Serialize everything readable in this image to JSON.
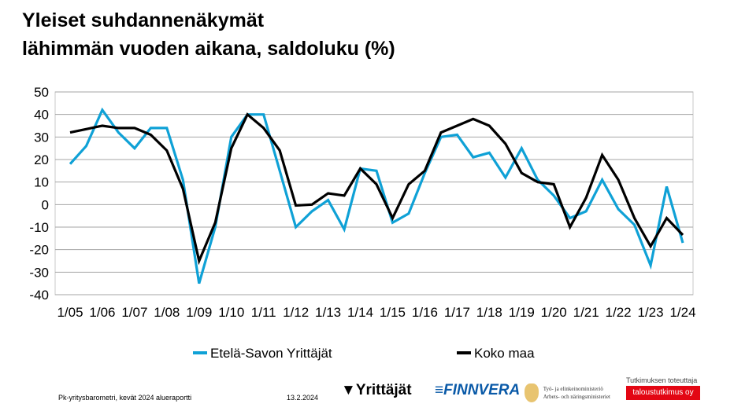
{
  "title_line1": "Yleiset suhdannenäkymät",
  "title_line2": "lähimmän vuoden aikana, saldoluku (%)",
  "chart_data": {
    "type": "line",
    "x_tick_labels": [
      "1/05",
      "1/06",
      "1/07",
      "1/08",
      "1/09",
      "1/10",
      "1/11",
      "1/12",
      "1/13",
      "1/14",
      "1/15",
      "1/16",
      "1/17",
      "1/18",
      "1/19",
      "1/20",
      "1/21",
      "1/22",
      "1/23",
      "1/24"
    ],
    "ylim": [
      -40,
      50
    ],
    "y_ticks": [
      50,
      40,
      30,
      20,
      10,
      0,
      -10,
      -20,
      -30,
      -40
    ],
    "grid": true,
    "legend_position": "bottom",
    "series": [
      {
        "name": "Etelä-Savon Yrittäjät",
        "color": "#0fa1d6",
        "values": [
          18,
          26,
          42,
          32,
          25,
          34,
          34,
          11,
          -35,
          -10,
          30,
          40,
          40,
          15,
          -10,
          -3,
          2,
          -11,
          16,
          15,
          -8,
          -4,
          14,
          30,
          31,
          21,
          23,
          12,
          25,
          11,
          4,
          -6,
          -3,
          11,
          -2,
          -9,
          -27,
          8,
          -17
        ]
      },
      {
        "name": "Koko maa",
        "color": "#000000",
        "values": [
          32,
          33.5,
          35,
          34,
          34,
          31,
          24,
          7,
          -25,
          -8,
          25,
          40,
          34,
          24,
          -0.4,
          0,
          5,
          4,
          16,
          9,
          -6,
          9,
          15,
          32,
          35,
          38,
          35,
          27,
          14,
          10,
          9,
          -10,
          3,
          22,
          11,
          -6,
          -18.5,
          -6,
          -13.5
        ]
      }
    ]
  },
  "footer": {
    "report": "Pk-yritysbarometri, kevät 2024 alueraportti",
    "date": "13.2.2024",
    "logo_yrittajat": "Yrittäjät",
    "logo_finnvera": "FINNVERA",
    "logo_tem_line1": "Työ- ja elinkeinoministeriö",
    "logo_tem_line2": "Arbets- och näringsministeriet",
    "research_label": "Tutkimuksen toteuttaja",
    "research_company": "taloustutkimus oy"
  }
}
